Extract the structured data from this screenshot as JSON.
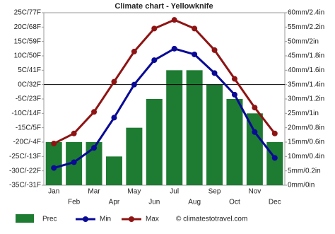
{
  "chart_data": {
    "type": "combo",
    "title": "Climate chart - Yellowknife",
    "categories": [
      "Jan",
      "Feb",
      "Mar",
      "Apr",
      "May",
      "Jun",
      "Jul",
      "Aug",
      "Sep",
      "Oct",
      "Nov",
      "Dec"
    ],
    "series": [
      {
        "name": "Prec",
        "type": "bar",
        "axis": "y2",
        "color": "#1e7b32",
        "values": [
          15,
          15,
          15,
          10,
          20,
          30,
          40,
          40,
          35,
          30,
          25,
          15
        ]
      },
      {
        "name": "Min",
        "type": "line",
        "color": "#0a0a96",
        "values": [
          -29,
          -27,
          -22,
          -11.5,
          0,
          8.5,
          12.5,
          10.5,
          4,
          -3.5,
          -16.5,
          -25.5
        ]
      },
      {
        "name": "Max",
        "type": "line",
        "color": "#8e1414",
        "values": [
          -20.5,
          -17,
          -9.5,
          1,
          11.5,
          19.5,
          22.5,
          19.5,
          12,
          2,
          -8,
          -17
        ]
      }
    ],
    "ylim": [
      -35,
      25
    ],
    "yticks": [
      {
        "value": -35,
        "label": "-35C/-31F"
      },
      {
        "value": -30,
        "label": "-30C/-22F"
      },
      {
        "value": -25,
        "label": "-25C/-13F"
      },
      {
        "value": -20,
        "label": "-20C/-4F"
      },
      {
        "value": -15,
        "label": "-15C/5F"
      },
      {
        "value": -10,
        "label": "-10C/14F"
      },
      {
        "value": -5,
        "label": "-5C/23F"
      },
      {
        "value": 0,
        "label": "0C/32F"
      },
      {
        "value": 5,
        "label": "5C/41F"
      },
      {
        "value": 10,
        "label": "10C/50F"
      },
      {
        "value": 15,
        "label": "15C/59F"
      },
      {
        "value": 20,
        "label": "20C/68F"
      },
      {
        "value": 25,
        "label": "25C/77F"
      }
    ],
    "y2lim": [
      0,
      60
    ],
    "y2ticks": [
      {
        "value": 0,
        "label": "0mm/0in"
      },
      {
        "value": 5,
        "label": "5mm/0.2in"
      },
      {
        "value": 10,
        "label": "10mm/0.4in"
      },
      {
        "value": 15,
        "label": "15mm/0.6in"
      },
      {
        "value": 20,
        "label": "20mm/0.8in"
      },
      {
        "value": 25,
        "label": "25mm/1in"
      },
      {
        "value": 30,
        "label": "30mm/1.2in"
      },
      {
        "value": 35,
        "label": "35mm/1.4in"
      },
      {
        "value": 40,
        "label": "40mm/1.6in"
      },
      {
        "value": 45,
        "label": "45mm/1.8in"
      },
      {
        "value": 50,
        "label": "50mm/2in"
      },
      {
        "value": 55,
        "label": "55mm/2.2in"
      },
      {
        "value": 60,
        "label": "60mm/2.4in"
      }
    ],
    "credit": "© climatestotravel.com"
  }
}
